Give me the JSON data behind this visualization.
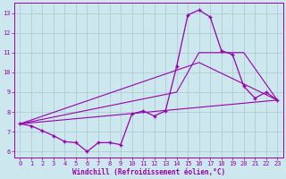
{
  "xlabel": "Windchill (Refroidissement éolien,°C)",
  "bg_color": "#cce8ee",
  "line_color": "#9900aa",
  "grid_color": "#aac8cc",
  "xlim": [
    -0.5,
    23.5
  ],
  "ylim": [
    5.7,
    13.5
  ],
  "xticks": [
    0,
    1,
    2,
    3,
    4,
    5,
    6,
    7,
    8,
    9,
    10,
    11,
    12,
    13,
    14,
    15,
    16,
    17,
    18,
    19,
    20,
    21,
    22,
    23
  ],
  "yticks": [
    6,
    7,
    8,
    9,
    10,
    11,
    12,
    13
  ],
  "line1_x": [
    0,
    1,
    2,
    3,
    4,
    5,
    6,
    7,
    8,
    9,
    10,
    11,
    12,
    13,
    14,
    15,
    16,
    17,
    18,
    19,
    20,
    21,
    22,
    23
  ],
  "line1_y": [
    7.4,
    7.3,
    7.05,
    6.8,
    6.5,
    6.45,
    6.0,
    6.45,
    6.45,
    6.35,
    7.9,
    8.05,
    7.8,
    8.05,
    10.3,
    12.9,
    13.15,
    12.8,
    11.1,
    10.9,
    9.3,
    8.7,
    9.0,
    8.6
  ],
  "line2_x": [
    0,
    23
  ],
  "line2_y": [
    7.4,
    8.6
  ],
  "line3_x": [
    0,
    14,
    16,
    20,
    23
  ],
  "line3_y": [
    7.4,
    9.0,
    11.0,
    11.0,
    8.6
  ],
  "line4_x": [
    0,
    16,
    23
  ],
  "line4_y": [
    7.4,
    10.5,
    8.6
  ]
}
